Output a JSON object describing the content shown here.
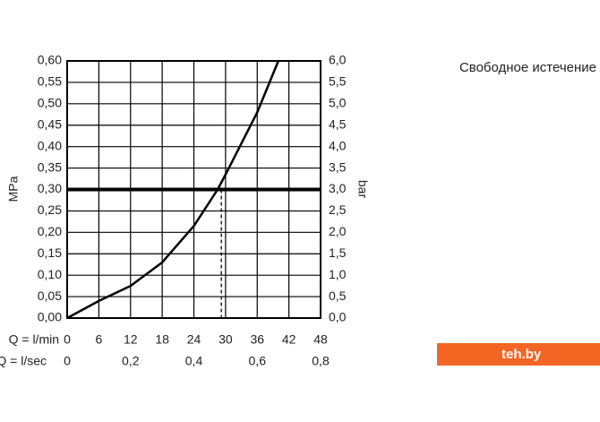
{
  "chart_data": {
    "type": "line",
    "title": "Свободное истечение",
    "y_label": "MPa",
    "y2_label": "bar",
    "x_label": "Q = l/min",
    "x2_label": "Q = l/sec",
    "x": [
      0,
      6,
      12,
      18,
      24,
      28.5,
      30,
      36,
      40
    ],
    "values": [
      0,
      0.04,
      0.075,
      0.13,
      0.215,
      0.3,
      0.335,
      0.48,
      0.6
    ],
    "color": "#000000",
    "xlim": [
      0,
      48
    ],
    "xticks": [
      0,
      6,
      12,
      18,
      24,
      30,
      36,
      42,
      48
    ],
    "x2lim": [
      0,
      0.8
    ],
    "x2ticks": [
      0,
      {
        "value": 0.2,
        "label": "0,2"
      },
      {
        "value": 0.4,
        "label": "0,4"
      },
      {
        "value": 0.6,
        "label": "0,6"
      },
      {
        "value": 0.8,
        "label": "0,8"
      }
    ],
    "ylim": [
      0,
      0.6
    ],
    "yticks": [
      {
        "value": 0,
        "label": "0,00"
      },
      {
        "value": 0.05,
        "label": "0,05"
      },
      {
        "value": 0.1,
        "label": "0,10"
      },
      {
        "value": 0.15,
        "label": "0,15"
      },
      {
        "value": 0.2,
        "label": "0,20"
      },
      {
        "value": 0.25,
        "label": "0,25"
      },
      {
        "value": 0.3,
        "label": "0,30"
      },
      {
        "value": 0.35,
        "label": "0,35"
      },
      {
        "value": 0.4,
        "label": "0,40"
      },
      {
        "value": 0.45,
        "label": "0,45"
      },
      {
        "value": 0.5,
        "label": "0,50"
      },
      {
        "value": 0.55,
        "label": "0,55"
      },
      {
        "value": 0.6,
        "label": "0,60"
      }
    ],
    "y2lim": [
      0,
      6
    ],
    "y2ticks": [
      {
        "value": 0,
        "label": "0,0"
      },
      {
        "value": 0.5,
        "label": "0,5"
      },
      {
        "value": 1,
        "label": "1,0"
      },
      {
        "value": 1.5,
        "label": "1,5"
      },
      {
        "value": 2,
        "label": "2,0"
      },
      {
        "value": 2.5,
        "label": "2,5"
      },
      {
        "value": 3,
        "label": "3,0"
      },
      {
        "value": 3.5,
        "label": "3,5"
      },
      {
        "value": 4,
        "label": "4,0"
      },
      {
        "value": 4.5,
        "label": "4,5"
      },
      {
        "value": 5,
        "label": "5,0"
      },
      {
        "value": 5.5,
        "label": "5,5"
      },
      {
        "value": 6,
        "label": "6,0"
      }
    ],
    "grid": true,
    "reference_y": 0.3,
    "marker_x": 29.2,
    "watermark": "teh.by"
  }
}
